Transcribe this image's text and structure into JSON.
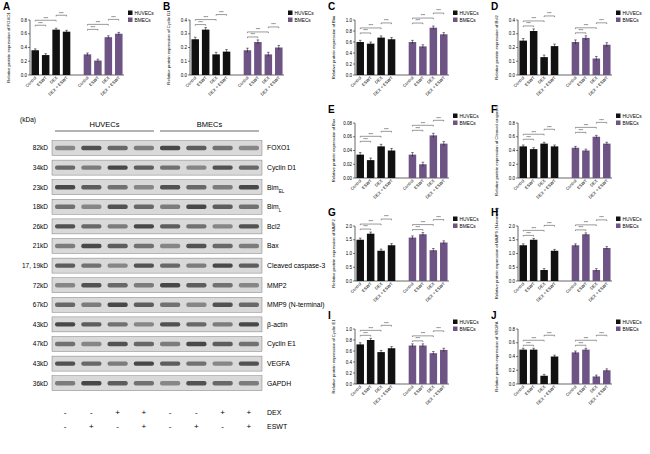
{
  "chart_data": [
    {
      "type": "bar",
      "title": "A",
      "y_label": "Relative protein expression of FOXO1",
      "categories": [
        "Control",
        "ESWT",
        "DEX",
        "DEX + ESWT"
      ],
      "series": [
        {
          "name": "HUVECs",
          "color": "#111111",
          "values": [
            0.36,
            0.29,
            0.66,
            0.63
          ],
          "errors": [
            0.02,
            0.02,
            0.02,
            0.02
          ]
        },
        {
          "name": "BMECs",
          "color": "#6e5485",
          "values": [
            0.3,
            0.21,
            0.55,
            0.6
          ],
          "errors": [
            0.02,
            0.02,
            0.02,
            0.02
          ]
        }
      ],
      "ylim": [
        0,
        0.8
      ],
      "yticks": [
        {
          "value": 0,
          "label": "0.0"
        },
        0.2,
        0.4,
        0.6,
        0.8
      ],
      "legend": "upper right",
      "annotations": [
        {
          "text": "***",
          "series": "HUVECs",
          "pairs": [
            [
              "Control",
              "ESWT"
            ],
            [
              "Control",
              "DEX"
            ],
            [
              "DEX",
              "DEX + ESWT"
            ]
          ]
        },
        {
          "text": "***",
          "series": "BMECs",
          "pairs": [
            [
              "Control",
              "ESWT"
            ],
            [
              "Control",
              "DEX"
            ],
            [
              "DEX",
              "DEX + ESWT"
            ]
          ]
        }
      ]
    },
    {
      "type": "bar",
      "title": "B",
      "y_label": "Relative protein expression of Cyclin D1",
      "categories": [
        "Control",
        "ESWT",
        "DEX",
        "DEX + ESWT"
      ],
      "series": [
        {
          "name": "HUVECs",
          "color": "#111111",
          "values": [
            0.26,
            0.33,
            0.15,
            0.17
          ],
          "errors": [
            0.015,
            0.015,
            0.015,
            0.015
          ]
        },
        {
          "name": "BMECs",
          "color": "#6e5485",
          "values": [
            0.18,
            0.24,
            0.15,
            0.2
          ],
          "errors": [
            0.015,
            0.015,
            0.015,
            0.015
          ]
        }
      ],
      "ylim": [
        0,
        0.4
      ],
      "yticks": [
        {
          "value": 0,
          "label": "0.0"
        },
        0.1,
        0.2,
        0.3,
        0.4
      ],
      "legend": "upper right",
      "annotations": [
        {
          "text": "***",
          "series": "HUVECs",
          "pairs": [
            [
              "Control",
              "ESWT"
            ],
            [
              "Control",
              "DEX"
            ],
            [
              "DEX",
              "DEX + ESWT"
            ]
          ]
        },
        {
          "text": "***",
          "series": "BMECs",
          "pairs": [
            [
              "Control",
              "ESWT"
            ],
            [
              "Control",
              "DEX"
            ],
            [
              "DEX",
              "DEX + ESWT"
            ]
          ]
        }
      ]
    },
    {
      "type": "bar",
      "title": "C",
      "y_label": "Relative protein expression of Bim",
      "categories": [
        "Control",
        "ESWT",
        "DEX",
        "DEX + ESWT"
      ],
      "series": [
        {
          "name": "HUVECs",
          "color": "#111111",
          "values": [
            0.6,
            0.57,
            0.68,
            0.65
          ],
          "errors": [
            0.03,
            0.03,
            0.03,
            0.03
          ]
        },
        {
          "name": "BMECs",
          "color": "#6e5485",
          "values": [
            0.6,
            0.52,
            0.86,
            0.74
          ],
          "errors": [
            0.03,
            0.03,
            0.03,
            0.03
          ]
        }
      ],
      "ylim": [
        0,
        1.0
      ],
      "yticks": [
        {
          "value": 0,
          "label": "0.0"
        },
        0.2,
        0.4,
        0.6,
        0.8,
        {
          "value": 1,
          "label": "1.0"
        }
      ],
      "legend": "upper right",
      "annotations": [
        {
          "text": "***",
          "series": "HUVECs",
          "pairs": [
            [
              "Control",
              "ESWT"
            ],
            [
              "Control",
              "DEX"
            ],
            [
              "DEX",
              "DEX + ESWT"
            ]
          ]
        },
        {
          "text": "***",
          "series": "BMECs",
          "pairs": [
            [
              "Control",
              "ESWT"
            ],
            [
              "Control",
              "DEX"
            ],
            [
              "DEX",
              "DEX + ESWT"
            ]
          ]
        }
      ]
    },
    {
      "type": "bar",
      "title": "D",
      "y_label": "Relative protein expression of Bcl2",
      "categories": [
        "Control",
        "ESWT",
        "DEX",
        "DEX + ESWT"
      ],
      "series": [
        {
          "name": "HUVECs",
          "color": "#111111",
          "values": [
            0.25,
            0.32,
            0.13,
            0.21
          ],
          "errors": [
            0.015,
            0.015,
            0.015,
            0.015
          ]
        },
        {
          "name": "BMECs",
          "color": "#6e5485",
          "values": [
            0.24,
            0.27,
            0.12,
            0.22
          ],
          "errors": [
            0.015,
            0.015,
            0.015,
            0.015
          ]
        }
      ],
      "ylim": [
        0,
        0.4
      ],
      "yticks": [
        {
          "value": 0,
          "label": "0.0"
        },
        0.1,
        0.2,
        0.3,
        0.4
      ],
      "legend": "upper right",
      "annotations": [
        {
          "text": "***",
          "series": "HUVECs",
          "pairs": [
            [
              "Control",
              "ESWT"
            ],
            [
              "Control",
              "DEX"
            ],
            [
              "DEX",
              "DEX + ESWT"
            ]
          ]
        },
        {
          "text": "***",
          "series": "BMECs",
          "pairs": [
            [
              "Control",
              "ESWT"
            ],
            [
              "Control",
              "DEX"
            ],
            [
              "DEX",
              "DEX + ESWT"
            ]
          ]
        }
      ]
    },
    {
      "type": "bar",
      "title": "E",
      "y_label": "Relative protein expression of Bax",
      "categories": [
        "Control",
        "ESWT",
        "DEX",
        "DEX + ESWT"
      ],
      "series": [
        {
          "name": "HUVECs",
          "color": "#111111",
          "values": [
            0.034,
            0.026,
            0.046,
            0.04
          ],
          "errors": [
            0.003,
            0.003,
            0.003,
            0.003
          ]
        },
        {
          "name": "BMECs",
          "color": "#6e5485",
          "values": [
            0.034,
            0.02,
            0.062,
            0.05
          ],
          "errors": [
            0.003,
            0.003,
            0.003,
            0.003
          ]
        }
      ],
      "ylim": [
        0,
        0.08
      ],
      "yticks": [
        {
          "value": 0,
          "label": "0.00"
        },
        0.02,
        0.04,
        0.06,
        0.08
      ],
      "legend": "upper right",
      "annotations": [
        {
          "text": "***",
          "series": "HUVECs",
          "pairs": [
            [
              "Control",
              "ESWT"
            ],
            [
              "Control",
              "DEX"
            ],
            [
              "DEX",
              "DEX + ESWT"
            ]
          ]
        },
        {
          "text": "***",
          "series": "BMECs",
          "pairs": [
            [
              "Control",
              "ESWT"
            ],
            [
              "Control",
              "DEX"
            ],
            [
              "DEX",
              "DEX + ESWT"
            ]
          ]
        }
      ]
    },
    {
      "type": "bar",
      "title": "F",
      "y_label": "Relative protein expression of Cleaved caspase3",
      "categories": [
        "Control",
        "ESWT",
        "DEX",
        "DEX + ESWT"
      ],
      "series": [
        {
          "name": "HUVECs",
          "color": "#111111",
          "values": [
            0.46,
            0.42,
            0.5,
            0.46
          ],
          "errors": [
            0.02,
            0.02,
            0.02,
            0.02
          ]
        },
        {
          "name": "BMECs",
          "color": "#6e5485",
          "values": [
            0.44,
            0.4,
            0.6,
            0.5
          ],
          "errors": [
            0.02,
            0.02,
            0.02,
            0.02
          ]
        }
      ],
      "ylim": [
        0,
        0.8
      ],
      "yticks": [
        {
          "value": 0,
          "label": "0.0"
        },
        0.2,
        0.4,
        0.6,
        0.8
      ],
      "legend": "upper right",
      "annotations": [
        {
          "text": "***",
          "series": "HUVECs",
          "pairs": [
            [
              "Control",
              "ESWT"
            ],
            [
              "Control",
              "DEX"
            ],
            [
              "DEX",
              "DEX + ESWT"
            ]
          ]
        },
        {
          "text": "***",
          "series": "BMECs",
          "pairs": [
            [
              "Control",
              "ESWT"
            ],
            [
              "Control",
              "DEX"
            ],
            [
              "DEX",
              "DEX + ESWT"
            ]
          ]
        }
      ]
    },
    {
      "type": "bar",
      "title": "G",
      "y_label": "Relative protein expression of MMP2",
      "categories": [
        "Control",
        "ESWT",
        "DEX",
        "DEX + ESWT"
      ],
      "series": [
        {
          "name": "HUVECs",
          "color": "#111111",
          "values": [
            1.5,
            1.72,
            1.1,
            1.3
          ],
          "errors": [
            0.06,
            0.06,
            0.06,
            0.06
          ]
        },
        {
          "name": "BMECs",
          "color": "#6e5485",
          "values": [
            1.58,
            1.7,
            1.12,
            1.4
          ],
          "errors": [
            0.06,
            0.06,
            0.06,
            0.06
          ]
        }
      ],
      "ylim": [
        0,
        2.0
      ],
      "yticks": [
        {
          "value": 0,
          "label": "0.0"
        },
        0.5,
        {
          "value": 1,
          "label": "1.0"
        },
        1.5,
        {
          "value": 2,
          "label": "2.0"
        }
      ],
      "legend": "upper right",
      "annotations": [
        {
          "text": "***",
          "series": "HUVECs",
          "pairs": [
            [
              "Control",
              "ESWT"
            ],
            [
              "Control",
              "DEX"
            ],
            [
              "DEX",
              "DEX + ESWT"
            ]
          ]
        },
        {
          "text": "***",
          "series": "BMECs",
          "pairs": [
            [
              "Control",
              "ESWT"
            ],
            [
              "Control",
              "DEX"
            ],
            [
              "DEX",
              "DEX + ESWT"
            ]
          ]
        }
      ]
    },
    {
      "type": "bar",
      "title": "H",
      "y_label": "Relative protein expression of MMP9 (N-terminal)",
      "categories": [
        "Control",
        "ESWT",
        "DEX",
        "DEX + ESWT"
      ],
      "series": [
        {
          "name": "HUVECs",
          "color": "#111111",
          "values": [
            1.3,
            1.5,
            0.4,
            1.1
          ],
          "errors": [
            0.05,
            0.05,
            0.05,
            0.05
          ]
        },
        {
          "name": "BMECs",
          "color": "#6e5485",
          "values": [
            1.3,
            1.7,
            0.4,
            1.2
          ],
          "errors": [
            0.05,
            0.05,
            0.05,
            0.05
          ]
        }
      ],
      "ylim": [
        0,
        2.0
      ],
      "yticks": [
        {
          "value": 0,
          "label": "0.0"
        },
        0.5,
        {
          "value": 1,
          "label": "1.0"
        },
        1.5,
        {
          "value": 2,
          "label": "2.0"
        }
      ],
      "legend": "upper right",
      "annotations": [
        {
          "text": "***",
          "series": "HUVECs",
          "pairs": [
            [
              "Control",
              "ESWT"
            ],
            [
              "Control",
              "DEX"
            ],
            [
              "DEX",
              "DEX + ESWT"
            ]
          ]
        },
        {
          "text": "***",
          "series": "BMECs",
          "pairs": [
            [
              "Control",
              "ESWT"
            ],
            [
              "Control",
              "DEX"
            ],
            [
              "DEX",
              "DEX + ESWT"
            ]
          ]
        }
      ]
    },
    {
      "type": "bar",
      "title": "I",
      "y_label": "Relative protein expression of Cyclin E1",
      "categories": [
        "Control",
        "ESWT",
        "DEX",
        "DEX + ESWT"
      ],
      "series": [
        {
          "name": "HUVECs",
          "color": "#111111",
          "values": [
            0.72,
            0.8,
            0.58,
            0.65
          ],
          "errors": [
            0.03,
            0.03,
            0.03,
            0.03
          ]
        },
        {
          "name": "BMECs",
          "color": "#6e5485",
          "values": [
            0.7,
            0.7,
            0.56,
            0.62
          ],
          "errors": [
            0.03,
            0.03,
            0.03,
            0.03
          ]
        }
      ],
      "ylim": [
        0,
        1.0
      ],
      "yticks": [
        {
          "value": 0,
          "label": "0.0"
        },
        0.2,
        0.4,
        0.6,
        0.8,
        {
          "value": 1,
          "label": "1.0"
        }
      ],
      "legend": "upper right",
      "annotations": [
        {
          "text": "***",
          "series": "HUVECs",
          "pairs": [
            [
              "Control",
              "ESWT"
            ],
            [
              "Control",
              "DEX"
            ],
            [
              "DEX",
              "DEX + ESWT"
            ]
          ]
        },
        {
          "text": "***",
          "series": "BMECs",
          "pairs": [
            [
              "Control",
              "ESWT"
            ],
            [
              "Control",
              "DEX"
            ],
            [
              "DEX",
              "DEX + ESWT"
            ]
          ]
        }
      ]
    },
    {
      "type": "bar",
      "title": "J",
      "y_label": "Relative protein expression of VEGFA",
      "categories": [
        "Control",
        "ESWT",
        "DEX",
        "DEX + ESWT"
      ],
      "series": [
        {
          "name": "HUVECs",
          "color": "#111111",
          "values": [
            0.5,
            0.5,
            0.12,
            0.4
          ],
          "errors": [
            0.02,
            0.02,
            0.02,
            0.02
          ]
        },
        {
          "name": "BMECs",
          "color": "#6e5485",
          "values": [
            0.46,
            0.5,
            0.11,
            0.2
          ],
          "errors": [
            0.02,
            0.02,
            0.02,
            0.02
          ]
        }
      ],
      "ylim": [
        0,
        0.8
      ],
      "yticks": [
        {
          "value": 0,
          "label": "0.0"
        },
        0.2,
        0.4,
        0.6,
        0.8
      ],
      "legend": "upper right",
      "annotations": [
        {
          "text": "***",
          "series": "HUVECs",
          "pairs": [
            [
              "Control",
              "ESWT"
            ],
            [
              "Control",
              "DEX"
            ],
            [
              "DEX",
              "DEX + ESWT"
            ]
          ]
        },
        {
          "text": "***",
          "series": "BMECs",
          "pairs": [
            [
              "Control",
              "ESWT"
            ],
            [
              "Control",
              "DEX"
            ],
            [
              "DEX",
              "DEX + ESWT"
            ]
          ]
        }
      ]
    }
  ],
  "blot": {
    "unit_header": "(kDa)",
    "cell_lines": [
      "HUVECs",
      "BMECs"
    ],
    "rows": [
      {
        "kda": "82kD",
        "label": "FOXO1"
      },
      {
        "kda": "34kD",
        "label": "Cyclin D1"
      },
      {
        "kda": "23kD",
        "label": "Bim",
        "sub": "EL"
      },
      {
        "kda": "18kD",
        "label": "Bim",
        "sub": "L"
      },
      {
        "kda": "26kD",
        "label": "Bcl2"
      },
      {
        "kda": "21kD",
        "label": "Bax"
      },
      {
        "kda": "17, 19kD",
        "label": "Cleaved caspase-3"
      },
      {
        "kda": "72kD",
        "label": "MMP2"
      },
      {
        "kda": "67kD",
        "label": "MMP9 (N-terminal)"
      },
      {
        "kda": "43kD",
        "label": "β-actin"
      },
      {
        "kda": "47kD",
        "label": "Cyclin E1"
      },
      {
        "kda": "43kD",
        "label": "VEGFA"
      },
      {
        "kda": "36kD",
        "label": "GAPDH"
      }
    ],
    "treatments": [
      {
        "label": "DEX",
        "signs": [
          "-",
          "-",
          "+",
          "+",
          "-",
          "-",
          "+",
          "+"
        ]
      },
      {
        "label": "ESWT",
        "signs": [
          "-",
          "+",
          "-",
          "+",
          "-",
          "+",
          "-",
          "+"
        ]
      }
    ]
  }
}
